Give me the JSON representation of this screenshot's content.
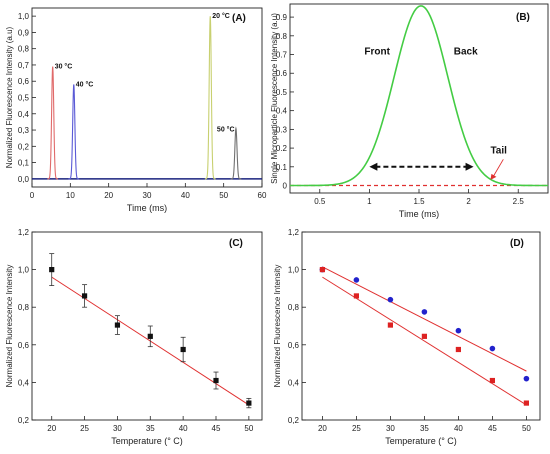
{
  "chart_data": [
    {
      "panel": "(A)",
      "type": "line",
      "xlabel": "Time (ms)",
      "ylabel": "Normalized Fluorescence Intensity (a.u)",
      "xlim": [
        0,
        60
      ],
      "ylim": [
        -0.05,
        1.05
      ],
      "xticks": [
        "0",
        "10",
        "20",
        "30",
        "40",
        "50",
        "60"
      ],
      "yticks": [
        "0,0",
        "0,1",
        "0,2",
        "0,3",
        "0,4",
        "0,5",
        "0,6",
        "0,7",
        "0,8",
        "0,9",
        "1,0"
      ],
      "series": [
        {
          "name": "30 °C",
          "peak_x": 5.4,
          "peak_y": 0.69,
          "color": "#e06a6a"
        },
        {
          "name": "40 °C",
          "peak_x": 10.9,
          "peak_y": 0.58,
          "color": "#5a5ad6"
        },
        {
          "name": "20 °C",
          "peak_x": 46.5,
          "peak_y": 1.0,
          "color": "#c8d070"
        },
        {
          "name": "50 °C",
          "peak_x": 53.2,
          "peak_y": 0.31,
          "color": "#707070"
        }
      ],
      "baseline_color": "#1a237e"
    },
    {
      "panel": "(B)",
      "type": "line",
      "xlabel": "Time (ms)",
      "ylabel": "Single Microparticle Fluorescence Intensity (a.u)",
      "xlim": [
        0.2,
        2.8
      ],
      "ylim": [
        -0.04,
        0.97
      ],
      "xticks": [
        "0.5",
        "1",
        "1.5",
        "2",
        "2.5"
      ],
      "yticks": [
        "0",
        "0.1",
        "0.2",
        "0.3",
        "0.4",
        "0.5",
        "0.6",
        "0.7",
        "0.8",
        "0.9"
      ],
      "peak": {
        "x": 1.52,
        "y": 0.96,
        "sigma": 0.27,
        "color": "#44cc44"
      },
      "baseline": {
        "y": 0.0,
        "color": "#e03030"
      },
      "labels": [
        "Front",
        "Back",
        "Tail"
      ],
      "arrow": {
        "x1": 1.0,
        "x2": 2.05,
        "y": 0.1
      }
    },
    {
      "panel": "(C)",
      "type": "scatter",
      "xlabel": "Temperature (° C)",
      "ylabel": "Normalized Fluorescence Intensity",
      "xlim": [
        17,
        52
      ],
      "ylim": [
        0.2,
        1.2
      ],
      "xticks": [
        "20",
        "25",
        "30",
        "35",
        "40",
        "45",
        "50"
      ],
      "yticks": [
        "0,2",
        "0,4",
        "0,6",
        "0,8",
        "1,0",
        "1,2"
      ],
      "x": [
        20,
        25,
        30,
        35,
        40,
        45,
        50
      ],
      "y": [
        1.0,
        0.86,
        0.705,
        0.645,
        0.575,
        0.41,
        0.29
      ],
      "err": [
        0.085,
        0.06,
        0.05,
        0.055,
        0.065,
        0.045,
        0.025
      ],
      "fit": {
        "x": [
          20,
          50
        ],
        "y": [
          0.96,
          0.28
        ],
        "color": "#e03030"
      }
    },
    {
      "panel": "(D)",
      "type": "scatter",
      "xlabel": "Temperature (° C)",
      "ylabel": "Normalized Fluorescence Intensity",
      "xlim": [
        17,
        52
      ],
      "ylim": [
        0.2,
        1.2
      ],
      "xticks": [
        "20",
        "25",
        "30",
        "35",
        "40",
        "45",
        "50"
      ],
      "yticks": [
        "0,2",
        "0,4",
        "0,6",
        "0,8",
        "1,0",
        "1,2"
      ],
      "series": [
        {
          "color": "#2222cc",
          "marker": "circle",
          "x": [
            20,
            25,
            30,
            35,
            40,
            45,
            50
          ],
          "y": [
            1.0,
            0.945,
            0.84,
            0.775,
            0.675,
            0.58,
            0.42
          ],
          "fit": {
            "x": [
              20,
              50
            ],
            "y": [
              1.015,
              0.46
            ]
          }
        },
        {
          "color": "#dd2222",
          "marker": "square",
          "x": [
            20,
            25,
            30,
            35,
            40,
            45,
            50
          ],
          "y": [
            1.0,
            0.86,
            0.705,
            0.645,
            0.575,
            0.41,
            0.29
          ],
          "fit": {
            "x": [
              20,
              50
            ],
            "y": [
              0.96,
              0.28
            ]
          }
        }
      ]
    }
  ]
}
